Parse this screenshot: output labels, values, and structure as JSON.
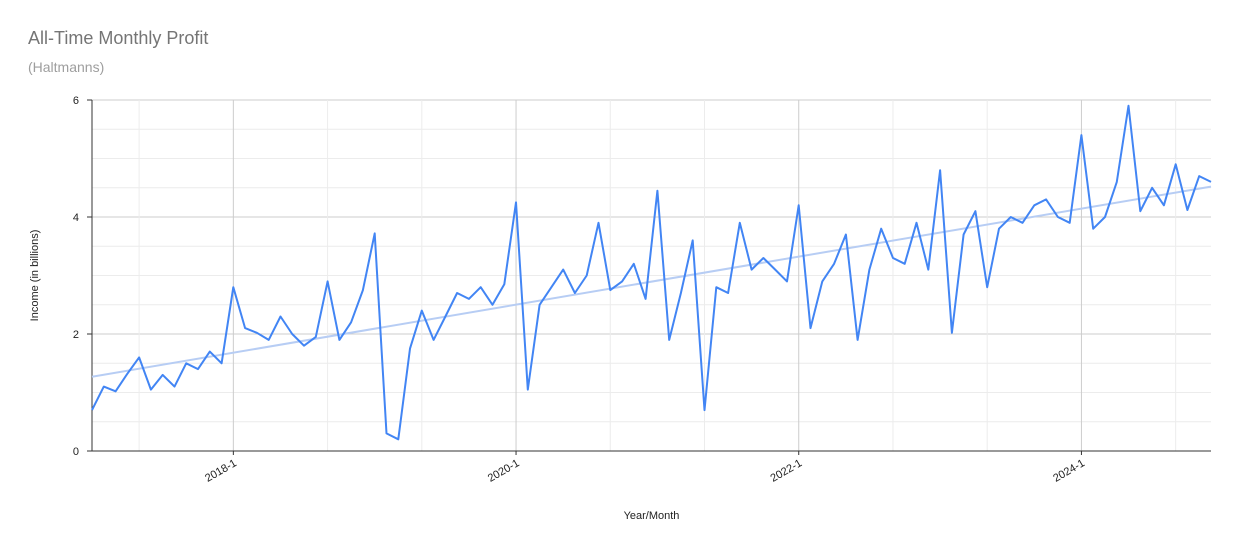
{
  "chart_data": {
    "type": "line",
    "title": "All-Time Monthly Profit",
    "subtitle": "(Haltmanns)",
    "xlabel": "Year/Month",
    "ylabel": "Income (in billions)",
    "ylim": [
      0,
      6
    ],
    "y_ticks": [
      "0",
      "2",
      "4",
      "6"
    ],
    "x_ticks": [
      "2018-1",
      "2020-1",
      "2022-1",
      "2024-1"
    ],
    "grid": true,
    "start": "2017-1",
    "trendline": {
      "start": 1.27,
      "end": 4.52
    },
    "series": [
      {
        "values": [
          0.7,
          1.1,
          1.02,
          1.32,
          1.6,
          1.05,
          1.3,
          1.1,
          1.5,
          1.4,
          1.7,
          1.5,
          2.8,
          2.1,
          2.02,
          1.9,
          2.3,
          2.0,
          1.8,
          1.95,
          2.9,
          1.9,
          2.2,
          2.75,
          3.72,
          0.3,
          0.2,
          1.75,
          2.4,
          1.9,
          2.3,
          2.7,
          2.6,
          2.8,
          2.5,
          2.85,
          4.25,
          1.05,
          2.5,
          2.8,
          3.1,
          2.7,
          3.0,
          3.9,
          2.75,
          2.9,
          3.2,
          2.6,
          4.45,
          1.9,
          2.7,
          3.6,
          0.7,
          2.8,
          2.7,
          3.9,
          3.1,
          3.3,
          3.1,
          2.9,
          4.2,
          2.1,
          2.9,
          3.2,
          3.7,
          1.9,
          3.1,
          3.8,
          3.3,
          3.2,
          3.9,
          3.1,
          4.8,
          2.02,
          3.7,
          4.1,
          2.8,
          3.8,
          4.0,
          3.9,
          4.2,
          4.3,
          4.0,
          3.9,
          5.4,
          3.8,
          4.0,
          4.6,
          5.9,
          4.1,
          4.5,
          4.2,
          4.9,
          4.12,
          4.7,
          4.6
        ]
      }
    ]
  },
  "colors": {
    "series": "#4285f4",
    "trend": "#b7cdf4",
    "grid": "#e0e0e0",
    "axis": "#333333"
  }
}
